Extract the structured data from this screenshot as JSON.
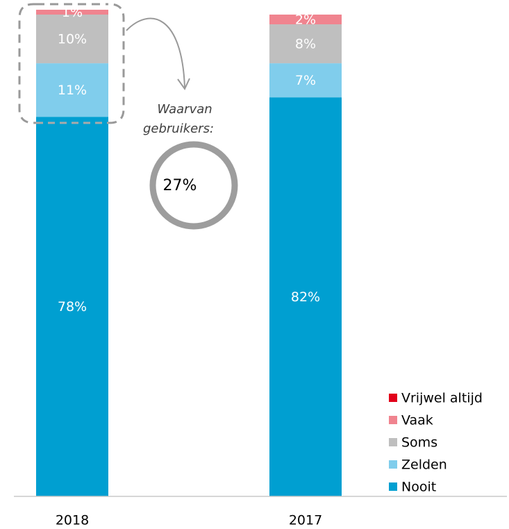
{
  "chart_data": {
    "type": "stacked_bar",
    "categories": [
      "2018",
      "2017"
    ],
    "series": [
      {
        "name": "Nooit",
        "color": "#009fd1",
        "values": [
          78,
          82
        ],
        "value_labels": [
          "78%",
          "82%"
        ]
      },
      {
        "name": "Zelden",
        "color": "#80cdec",
        "values": [
          11,
          7
        ],
        "value_labels": [
          "11%",
          "7%"
        ]
      },
      {
        "name": "Soms",
        "color": "#bfbfbf",
        "values": [
          10,
          8
        ],
        "value_labels": [
          "10%",
          "8%"
        ]
      },
      {
        "name": "Vaak",
        "color": "#f0848f",
        "values": [
          1,
          2
        ],
        "value_labels": [
          "1%",
          "2%"
        ]
      },
      {
        "name": "Vrijwel altijd",
        "color": "#e2001a",
        "values": [
          0,
          0
        ]
      }
    ],
    "ylim": [
      0,
      100
    ],
    "callout": {
      "text": [
        "Waarvan",
        "gebruikers:"
      ],
      "value": "27%"
    }
  }
}
